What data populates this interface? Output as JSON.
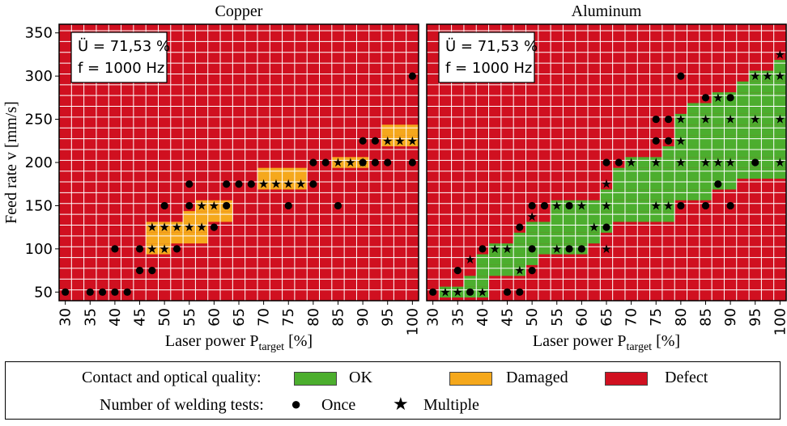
{
  "chart_data": [
    {
      "type": "heatmap",
      "title": "Copper",
      "xlabel_main": "Laser power P",
      "xlabel_sub": "target",
      "xlabel_unit": " [%]",
      "ylabel": "Feed rate v [mm/s]",
      "x_ticks": [
        30,
        35,
        40,
        45,
        50,
        55,
        60,
        65,
        70,
        75,
        80,
        85,
        90,
        95,
        100
      ],
      "y_ticks": [
        50,
        100,
        150,
        200,
        250,
        300,
        350
      ],
      "xlim": [
        30,
        100
      ],
      "ylim": [
        40,
        360
      ],
      "grid_step": {
        "x": 2.5,
        "y": 12.5
      },
      "annotation": [
        "Ü = 71,53 %",
        "f = 1000 Hz"
      ],
      "background_class": "Defect",
      "damaged_cells": [
        [
          47.5,
          100
        ],
        [
          47.5,
          112.5
        ],
        [
          47.5,
          125
        ],
        [
          50,
          100
        ],
        [
          50,
          112.5
        ],
        [
          50,
          125
        ],
        [
          52.5,
          112.5
        ],
        [
          52.5,
          125
        ],
        [
          55,
          112.5
        ],
        [
          55,
          125
        ],
        [
          57.5,
          112.5
        ],
        [
          57.5,
          125
        ],
        [
          55,
          137.5
        ],
        [
          57.5,
          137.5
        ],
        [
          57.5,
          150
        ],
        [
          60,
          137.5
        ],
        [
          60,
          150
        ],
        [
          62.5,
          137.5
        ],
        [
          62.5,
          150
        ],
        [
          70,
          175
        ],
        [
          70,
          187.5
        ],
        [
          72.5,
          175
        ],
        [
          72.5,
          187.5
        ],
        [
          75,
          175
        ],
        [
          75,
          187.5
        ],
        [
          77.5,
          175
        ],
        [
          77.5,
          187.5
        ],
        [
          85,
          200
        ],
        [
          87.5,
          200
        ],
        [
          90,
          200
        ],
        [
          95,
          225
        ],
        [
          95,
          237.5
        ],
        [
          97.5,
          225
        ],
        [
          97.5,
          237.5
        ],
        [
          100,
          225
        ],
        [
          100,
          237.5
        ]
      ],
      "ok_cells": [],
      "once": [
        [
          30,
          50
        ],
        [
          35,
          50
        ],
        [
          37.5,
          50
        ],
        [
          40,
          50
        ],
        [
          42.5,
          50
        ],
        [
          40,
          100
        ],
        [
          45,
          75
        ],
        [
          47.5,
          75
        ],
        [
          45,
          100
        ],
        [
          50,
          150
        ],
        [
          52.5,
          100
        ],
        [
          55,
          150
        ],
        [
          55,
          175
        ],
        [
          60,
          125
        ],
        [
          62.5,
          175
        ],
        [
          62.5,
          150
        ],
        [
          65,
          175
        ],
        [
          67.5,
          175
        ],
        [
          75,
          150
        ],
        [
          80,
          175
        ],
        [
          80,
          200
        ],
        [
          82.5,
          200
        ],
        [
          85,
          150
        ],
        [
          90,
          200
        ],
        [
          92.5,
          200
        ],
        [
          92.5,
          225
        ],
        [
          95,
          200
        ],
        [
          100,
          200
        ],
        [
          100,
          300
        ],
        [
          90,
          225
        ]
      ],
      "multiple": [
        [
          47.5,
          100
        ],
        [
          50,
          100
        ],
        [
          47.5,
          125
        ],
        [
          50,
          125
        ],
        [
          52.5,
          125
        ],
        [
          55,
          125
        ],
        [
          57.5,
          125
        ],
        [
          57.5,
          150
        ],
        [
          60,
          150
        ],
        [
          70,
          175
        ],
        [
          72.5,
          175
        ],
        [
          75,
          175
        ],
        [
          77.5,
          175
        ],
        [
          85,
          200
        ],
        [
          87.5,
          200
        ],
        [
          90,
          200
        ],
        [
          95,
          225
        ],
        [
          97.5,
          225
        ],
        [
          100,
          225
        ]
      ]
    },
    {
      "type": "heatmap",
      "title": "Aluminum",
      "xlabel_main": "Laser power P",
      "xlabel_sub": "target",
      "xlabel_unit": " [%]",
      "ylabel": "",
      "x_ticks": [
        30,
        35,
        40,
        45,
        50,
        55,
        60,
        65,
        70,
        75,
        80,
        85,
        90,
        95,
        100
      ],
      "y_ticks": [],
      "xlim": [
        30,
        100
      ],
      "ylim": [
        40,
        360
      ],
      "grid_step": {
        "x": 2.5,
        "y": 12.5
      },
      "annotation": [
        "Ü = 71,53 %",
        "f = 1000 Hz"
      ],
      "background_class": "Defect",
      "damaged_cells": [],
      "ok_cells_columns": [
        [
          32.5,
          50,
          50
        ],
        [
          35,
          50,
          50
        ],
        [
          37.5,
          50,
          62.5
        ],
        [
          40,
          50,
          87.5
        ],
        [
          42.5,
          75,
          100
        ],
        [
          45,
          75,
          100
        ],
        [
          47.5,
          75,
          112.5
        ],
        [
          50,
          87.5,
          125
        ],
        [
          52.5,
          100,
          125
        ],
        [
          55,
          100,
          150
        ],
        [
          57.5,
          100,
          150
        ],
        [
          60,
          100,
          150
        ],
        [
          62.5,
          112.5,
          150
        ],
        [
          65,
          125,
          162.5
        ],
        [
          67.5,
          137.5,
          187.5
        ],
        [
          70,
          137.5,
          200
        ],
        [
          72.5,
          137.5,
          200
        ],
        [
          75,
          137.5,
          200
        ],
        [
          77.5,
          137.5,
          212.5
        ],
        [
          80,
          162.5,
          250
        ],
        [
          82.5,
          162.5,
          262.5
        ],
        [
          85,
          162.5,
          262.5
        ],
        [
          87.5,
          175,
          275
        ],
        [
          90,
          175,
          275
        ],
        [
          92.5,
          187.5,
          287.5
        ],
        [
          95,
          187.5,
          300
        ],
        [
          97.5,
          187.5,
          300
        ],
        [
          100,
          187.5,
          312.5
        ]
      ],
      "once": [
        [
          30,
          50
        ],
        [
          35,
          75
        ],
        [
          37.5,
          50
        ],
        [
          45,
          50
        ],
        [
          47.5,
          50
        ],
        [
          40,
          100
        ],
        [
          50,
          75
        ],
        [
          47.5,
          125
        ],
        [
          50,
          100
        ],
        [
          50,
          150
        ],
        [
          52.5,
          150
        ],
        [
          57.5,
          150
        ],
        [
          57.5,
          100
        ],
        [
          60,
          100
        ],
        [
          65,
          125
        ],
        [
          65,
          200
        ],
        [
          67.5,
          200
        ],
        [
          75,
          225
        ],
        [
          75,
          250
        ],
        [
          77.5,
          225
        ],
        [
          77.5,
          250
        ],
        [
          80,
          150
        ],
        [
          80,
          300
        ],
        [
          85,
          150
        ],
        [
          85,
          275
        ],
        [
          87.5,
          175
        ],
        [
          90,
          275
        ],
        [
          90,
          150
        ],
        [
          95,
          200
        ]
      ],
      "multiple": [
        [
          32.5,
          50
        ],
        [
          35,
          50
        ],
        [
          40,
          50
        ],
        [
          37.5,
          87.5
        ],
        [
          42.5,
          100
        ],
        [
          45,
          100
        ],
        [
          47.5,
          75
        ],
        [
          50,
          137.5
        ],
        [
          55,
          100
        ],
        [
          55,
          150
        ],
        [
          60,
          150
        ],
        [
          65,
          150
        ],
        [
          62.5,
          125
        ],
        [
          65,
          175
        ],
        [
          65,
          100
        ],
        [
          70,
          200
        ],
        [
          75,
          200
        ],
        [
          80,
          200
        ],
        [
          75,
          150
        ],
        [
          77.5,
          150
        ],
        [
          80,
          225
        ],
        [
          80,
          250
        ],
        [
          85,
          200
        ],
        [
          87.5,
          200
        ],
        [
          90,
          200
        ],
        [
          85,
          250
        ],
        [
          87.5,
          275
        ],
        [
          90,
          250
        ],
        [
          95,
          250
        ],
        [
          100,
          250
        ],
        [
          95,
          300
        ],
        [
          97.5,
          300
        ],
        [
          100,
          300
        ],
        [
          100,
          200
        ],
        [
          100,
          325
        ]
      ]
    }
  ],
  "legend": {
    "quality_label": "Contact and optical quality:",
    "ok_label": "OK",
    "damaged_label": "Damaged",
    "defect_label": "Defect",
    "tests_label": "Number of welding tests:",
    "once_label": "Once",
    "multiple_label": "Multiple",
    "once_symbol": "●",
    "multiple_symbol": "★"
  },
  "colors": {
    "defect": "#d01020",
    "ok": "#4cae2e",
    "damaged": "#f5a81c",
    "grid": "#ffffff",
    "marker": "#000000"
  }
}
